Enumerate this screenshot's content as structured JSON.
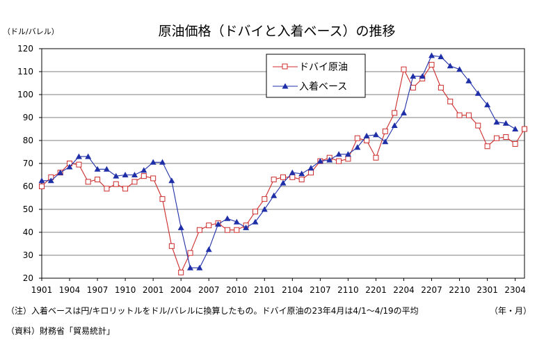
{
  "chart_data": {
    "type": "line",
    "title": "原油価格（ドバイと入着ベース）の推移",
    "ylabel": "（ドル/バレル）",
    "xlabel": "（年・月）",
    "ylim": [
      20,
      120
    ],
    "yticks": [
      20,
      30,
      40,
      50,
      60,
      70,
      80,
      90,
      100,
      110,
      120
    ],
    "xtick_labels": [
      "1901",
      "1904",
      "1907",
      "1910",
      "2001",
      "2004",
      "2007",
      "2010",
      "2101",
      "2104",
      "2107",
      "2110",
      "2201",
      "2204",
      "2207",
      "2210",
      "2301",
      "2304"
    ],
    "legend_position": "top-right",
    "grid": "horizontal",
    "series": [
      {
        "name": "ドバイ原油",
        "color": "#cc2a2a",
        "marker": "square-open",
        "values": [
          60,
          64,
          66,
          70,
          69.5,
          62,
          63,
          59,
          61,
          59,
          62,
          64.5,
          63.5,
          54.5,
          34,
          22.5,
          31,
          41,
          43,
          44,
          41,
          41,
          43,
          49,
          54.5,
          63,
          64,
          64,
          63,
          66,
          71,
          72.5,
          71,
          72,
          81,
          80,
          72.5,
          84,
          92,
          111,
          103,
          107,
          113,
          103,
          97,
          91,
          91,
          86.5,
          77.5,
          81,
          81.5,
          78.5,
          85
        ]
      },
      {
        "name": "入着ベース",
        "color": "#1f2fa8",
        "marker": "triangle-filled",
        "values": [
          62.5,
          62.5,
          66,
          68.5,
          73,
          73,
          67.5,
          67.5,
          64.5,
          65,
          65,
          67,
          70.5,
          70.5,
          62.5,
          42,
          24.5,
          24.5,
          32.5,
          43.5,
          46,
          44.5,
          42,
          44.5,
          50,
          56,
          61.5,
          66,
          65.5,
          68,
          71,
          71.5,
          74,
          74,
          77,
          82,
          82.5,
          79.5,
          86.5,
          92,
          108,
          108,
          117,
          116.5,
          112.5,
          111,
          106,
          100.5,
          95.5,
          88,
          87.5,
          85
        ]
      }
    ]
  },
  "notes": {
    "note1": "（注）入着ベースは円/キロリットルをドル/バレルに換算したもの。ドバイ原油の23年4月は4/1～4/19の平均",
    "source": "（資料）財務省「貿易統計」"
  }
}
